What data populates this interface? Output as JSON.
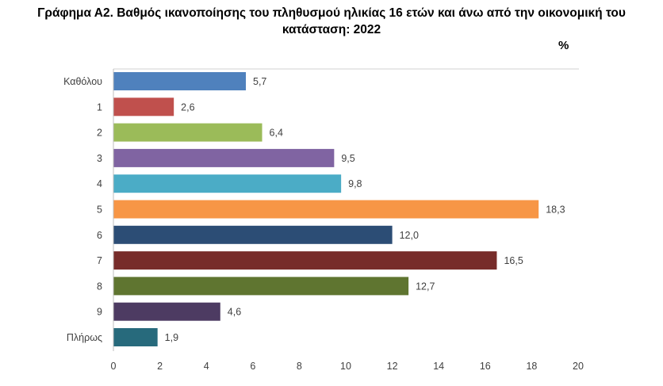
{
  "chart_data": {
    "type": "bar",
    "orientation": "horizontal",
    "title_line1": "Γράφημα Α2. Βαθμός ικανοποίησης του πληθυσμού ηλικίας 16 ετών και άνω από την οικονομική του",
    "title_line2": "κατάσταση: 2022",
    "unit": "%",
    "categories": [
      "Καθόλου",
      "1",
      "2",
      "3",
      "4",
      "5",
      "6",
      "7",
      "8",
      "9",
      "Πλήρως"
    ],
    "values": [
      5.7,
      2.6,
      6.4,
      9.5,
      9.8,
      18.3,
      12.0,
      16.5,
      12.7,
      4.6,
      1.9
    ],
    "value_labels": [
      "5,7",
      "2,6",
      "6,4",
      "9,5",
      "9,8",
      "18,3",
      "12,0",
      "16,5",
      "12,7",
      "4,6",
      "1,9"
    ],
    "colors": [
      "#4F81BD",
      "#C0504D",
      "#9BBB59",
      "#8064A2",
      "#4BACC6",
      "#F79646",
      "#2C4D75",
      "#772C2A",
      "#5F7530",
      "#4D3B62",
      "#276A7C"
    ],
    "xlim": [
      0,
      20
    ],
    "xticks": [
      "0",
      "2",
      "4",
      "6",
      "8",
      "10",
      "12",
      "14",
      "16",
      "18",
      "20"
    ],
    "grid": false
  }
}
